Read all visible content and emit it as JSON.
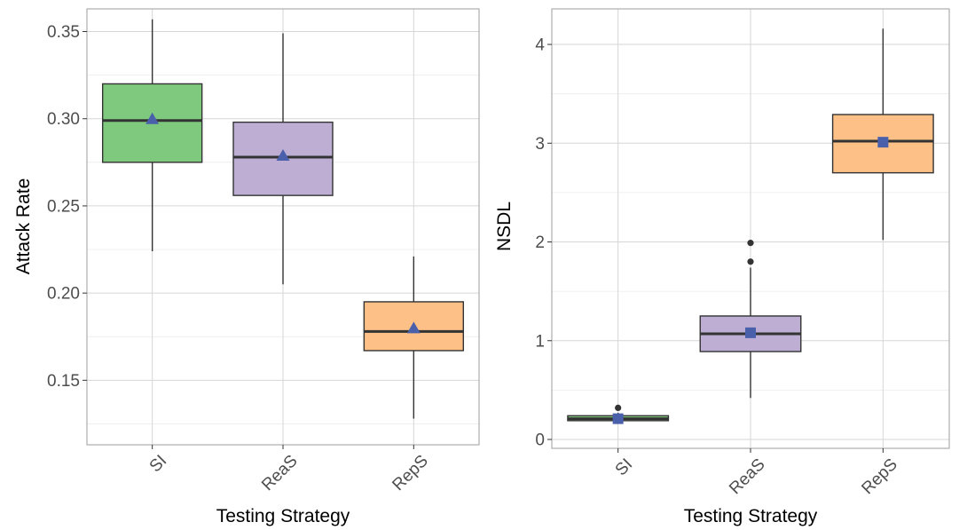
{
  "chart_data": [
    {
      "type": "box",
      "xlabel": "Testing Strategy",
      "ylabel": "Attack Rate",
      "categories": [
        "SI",
        "ReaS",
        "RepS"
      ],
      "ylim": [
        0.113,
        0.363
      ],
      "yticks": [
        0.15,
        0.2,
        0.25,
        0.3,
        0.35
      ],
      "ytick_labels": [
        "0.15",
        "0.20",
        "0.25",
        "0.30",
        "0.35"
      ],
      "grid": true,
      "mean_marker": "triangle",
      "mean_color": "#4a60ab",
      "boxes": [
        {
          "category": "SI",
          "fill": "#7fc97f",
          "whisker_low": 0.224,
          "q1": 0.275,
          "median": 0.299,
          "q3": 0.32,
          "whisker_high": 0.357,
          "mean": 0.3,
          "outliers": []
        },
        {
          "category": "ReaS",
          "fill": "#beaed4",
          "whisker_low": 0.205,
          "q1": 0.256,
          "median": 0.278,
          "q3": 0.298,
          "whisker_high": 0.349,
          "mean": 0.279,
          "outliers": []
        },
        {
          "category": "RepS",
          "fill": "#fdc086",
          "whisker_low": 0.128,
          "q1": 0.167,
          "median": 0.178,
          "q3": 0.195,
          "whisker_high": 0.221,
          "mean": 0.18,
          "outliers": []
        }
      ]
    },
    {
      "type": "box",
      "xlabel": "Testing Strategy",
      "ylabel": "NSDL",
      "categories": [
        "SI",
        "ReaS",
        "RepS"
      ],
      "ylim": [
        -0.09,
        4.36
      ],
      "yticks": [
        0,
        1,
        2,
        3,
        4
      ],
      "ytick_labels": [
        "0",
        "1",
        "2",
        "3",
        "4"
      ],
      "grid": true,
      "mean_marker": "square",
      "mean_color": "#4a60ab",
      "boxes": [
        {
          "category": "SI",
          "fill": "#7fc97f",
          "whisker_low": 0.17,
          "q1": 0.19,
          "median": 0.21,
          "q3": 0.24,
          "whisker_high": 0.27,
          "mean": 0.21,
          "outliers": [
            0.32
          ]
        },
        {
          "category": "ReaS",
          "fill": "#beaed4",
          "whisker_low": 0.42,
          "q1": 0.89,
          "median": 1.07,
          "q3": 1.25,
          "whisker_high": 1.74,
          "mean": 1.08,
          "outliers": [
            1.8,
            1.99
          ]
        },
        {
          "category": "RepS",
          "fill": "#fdc086",
          "whisker_low": 2.02,
          "q1": 2.7,
          "median": 3.02,
          "q3": 3.29,
          "whisker_high": 4.16,
          "mean": 3.01,
          "outliers": []
        }
      ]
    }
  ]
}
